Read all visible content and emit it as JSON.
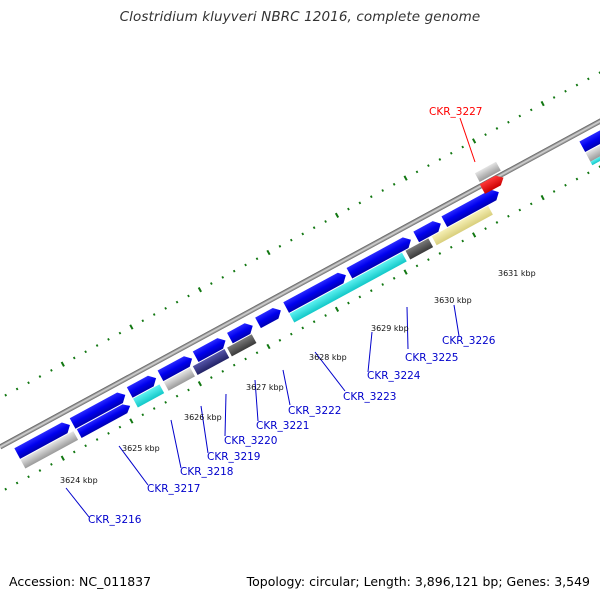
{
  "title": "Clostridium kluyveri NBRC 12016, complete genome",
  "footer": {
    "accession": "Accession: NC_011837",
    "summary": "Topology: circular; Length: 3,896,121 bp; Genes: 3,549"
  },
  "colors": {
    "forward_cds": "#0000ee",
    "cyan_cds": "#22dddd",
    "grey_cds": "#bbbbbb",
    "dark_grey_cds": "#555555",
    "navy_cds": "#333388",
    "khaki_cds": "#eee699",
    "highlight": "#ff0000",
    "label_blue": "#0000cc",
    "tick_green": "#117711",
    "backbone": "#999999"
  },
  "kbp_labels": [
    "3624 kbp",
    "3625 kbp",
    "3626 kbp",
    "3627 kbp",
    "3628 kbp",
    "3629 kbp",
    "3630 kbp",
    "3631 kbp"
  ],
  "gene_labels": [
    "CKR_3216",
    "CKR_3217",
    "CKR_3218",
    "CKR_3219",
    "CKR_3220",
    "CKR_3221",
    "CKR_3222",
    "CKR_3223",
    "CKR_3224",
    "CKR_3225",
    "CKR_3226"
  ],
  "highlight_label": "CKR_3227"
}
